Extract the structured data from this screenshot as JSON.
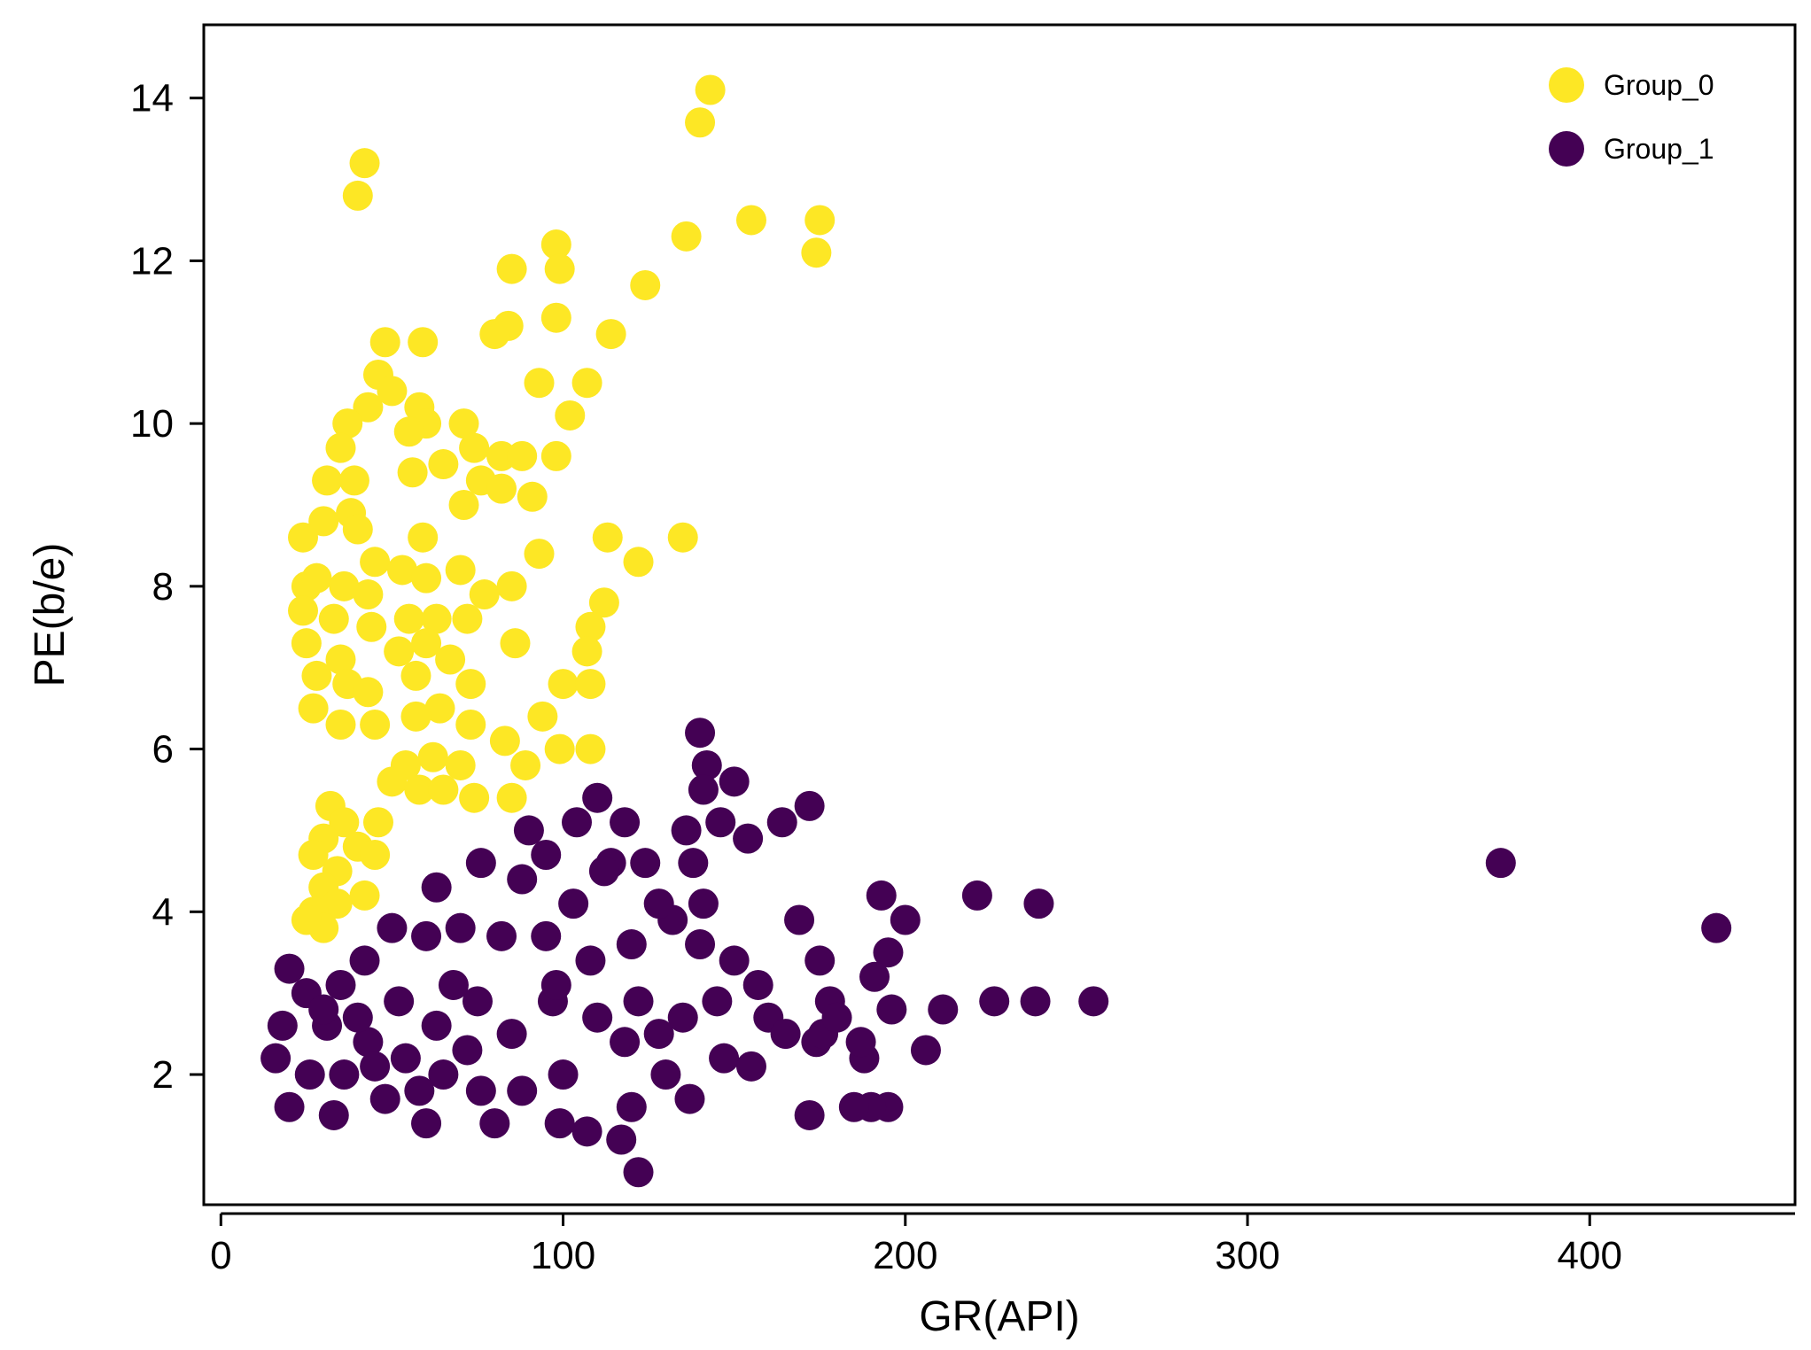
{
  "chart_data": {
    "type": "scatter",
    "title": "",
    "xlabel": "GR(API)",
    "ylabel": "PE(b/e)",
    "xlim": [
      -5,
      460
    ],
    "ylim": [
      0.4,
      14.9
    ],
    "xticks": [
      0,
      100,
      200,
      300,
      400
    ],
    "yticks": [
      2,
      4,
      6,
      8,
      10,
      12,
      14
    ],
    "grid": false,
    "legend_position": "top-right",
    "series": [
      {
        "name": "Group_0",
        "color": "#FDE725",
        "points": [
          [
            143,
            14.1
          ],
          [
            140,
            13.7
          ],
          [
            42,
            13.2
          ],
          [
            40,
            12.8
          ],
          [
            136,
            12.3
          ],
          [
            155,
            12.5
          ],
          [
            175,
            12.5
          ],
          [
            174,
            12.1
          ],
          [
            98,
            12.2
          ],
          [
            99,
            11.9
          ],
          [
            85,
            11.9
          ],
          [
            124,
            11.7
          ],
          [
            84,
            11.2
          ],
          [
            80,
            11.1
          ],
          [
            98,
            11.3
          ],
          [
            114,
            11.1
          ],
          [
            48,
            11.0
          ],
          [
            59,
            11.0
          ],
          [
            46,
            10.6
          ],
          [
            50,
            10.4
          ],
          [
            43,
            10.2
          ],
          [
            93,
            10.5
          ],
          [
            107,
            10.5
          ],
          [
            102,
            10.1
          ],
          [
            37,
            10.0
          ],
          [
            58,
            10.2
          ],
          [
            60,
            10.0
          ],
          [
            71,
            10.0
          ],
          [
            55,
            9.9
          ],
          [
            35,
            9.7
          ],
          [
            56,
            9.4
          ],
          [
            65,
            9.5
          ],
          [
            74,
            9.7
          ],
          [
            82,
            9.6
          ],
          [
            88,
            9.6
          ],
          [
            98,
            9.6
          ],
          [
            39,
            9.3
          ],
          [
            31,
            9.3
          ],
          [
            76,
            9.3
          ],
          [
            82,
            9.2
          ],
          [
            91,
            9.1
          ],
          [
            71,
            9.0
          ],
          [
            38,
            8.9
          ],
          [
            30,
            8.8
          ],
          [
            40,
            8.7
          ],
          [
            59,
            8.6
          ],
          [
            113,
            8.6
          ],
          [
            135,
            8.6
          ],
          [
            24,
            8.6
          ],
          [
            93,
            8.4
          ],
          [
            122,
            8.3
          ],
          [
            45,
            8.3
          ],
          [
            53,
            8.2
          ],
          [
            60,
            8.1
          ],
          [
            70,
            8.2
          ],
          [
            25,
            8.0
          ],
          [
            28,
            8.1
          ],
          [
            36,
            8.0
          ],
          [
            43,
            7.9
          ],
          [
            85,
            8.0
          ],
          [
            77,
            7.9
          ],
          [
            24,
            7.7
          ],
          [
            33,
            7.6
          ],
          [
            44,
            7.5
          ],
          [
            55,
            7.6
          ],
          [
            63,
            7.6
          ],
          [
            72,
            7.6
          ],
          [
            112,
            7.8
          ],
          [
            108,
            7.5
          ],
          [
            25,
            7.3
          ],
          [
            35,
            7.1
          ],
          [
            52,
            7.2
          ],
          [
            60,
            7.3
          ],
          [
            67,
            7.1
          ],
          [
            86,
            7.3
          ],
          [
            107,
            7.2
          ],
          [
            28,
            6.9
          ],
          [
            37,
            6.8
          ],
          [
            57,
            6.9
          ],
          [
            73,
            6.8
          ],
          [
            100,
            6.8
          ],
          [
            108,
            6.8
          ],
          [
            43,
            6.7
          ],
          [
            64,
            6.5
          ],
          [
            27,
            6.5
          ],
          [
            35,
            6.3
          ],
          [
            45,
            6.3
          ],
          [
            57,
            6.4
          ],
          [
            73,
            6.3
          ],
          [
            94,
            6.4
          ],
          [
            83,
            6.1
          ],
          [
            99,
            6.0
          ],
          [
            108,
            6.0
          ],
          [
            62,
            5.9
          ],
          [
            54,
            5.8
          ],
          [
            70,
            5.8
          ],
          [
            89,
            5.8
          ],
          [
            50,
            5.6
          ],
          [
            58,
            5.5
          ],
          [
            65,
            5.5
          ],
          [
            74,
            5.4
          ],
          [
            85,
            5.4
          ],
          [
            32,
            5.3
          ],
          [
            36,
            5.1
          ],
          [
            46,
            5.1
          ],
          [
            30,
            4.9
          ],
          [
            40,
            4.8
          ],
          [
            45,
            4.7
          ],
          [
            27,
            4.7
          ],
          [
            34,
            4.5
          ],
          [
            30,
            4.3
          ],
          [
            42,
            4.2
          ],
          [
            34,
            4.1
          ],
          [
            27,
            4.0
          ],
          [
            30,
            3.8
          ],
          [
            25,
            3.9
          ]
        ]
      },
      {
        "name": "Group_1",
        "color": "#440154",
        "points": [
          [
            437,
            3.8
          ],
          [
            374,
            4.6
          ],
          [
            255,
            2.9
          ],
          [
            238,
            2.9
          ],
          [
            239,
            4.1
          ],
          [
            226,
            2.9
          ],
          [
            221,
            4.2
          ],
          [
            211,
            2.8
          ],
          [
            206,
            2.3
          ],
          [
            200,
            3.9
          ],
          [
            196,
            2.8
          ],
          [
            193,
            4.2
          ],
          [
            195,
            3.5
          ],
          [
            195,
            1.6
          ],
          [
            191,
            3.2
          ],
          [
            190,
            1.6
          ],
          [
            188,
            2.2
          ],
          [
            185,
            1.6
          ],
          [
            187,
            2.4
          ],
          [
            174,
            2.4
          ],
          [
            172,
            1.5
          ],
          [
            169,
            3.9
          ],
          [
            172,
            5.3
          ],
          [
            164,
            5.1
          ],
          [
            175,
            3.4
          ],
          [
            178,
            2.9
          ],
          [
            176,
            2.5
          ],
          [
            140,
            6.2
          ],
          [
            142,
            5.8
          ],
          [
            141,
            5.5
          ],
          [
            150,
            5.6
          ],
          [
            146,
            5.1
          ],
          [
            154,
            4.9
          ],
          [
            136,
            5.0
          ],
          [
            138,
            4.6
          ],
          [
            141,
            4.1
          ],
          [
            124,
            4.6
          ],
          [
            118,
            5.1
          ],
          [
            110,
            5.4
          ],
          [
            104,
            5.1
          ],
          [
            90,
            5.0
          ],
          [
            95,
            4.7
          ],
          [
            114,
            4.6
          ],
          [
            122,
            0.8
          ],
          [
            117,
            1.2
          ],
          [
            107,
            1.3
          ],
          [
            120,
            1.6
          ],
          [
            137,
            1.7
          ],
          [
            99,
            1.4
          ],
          [
            80,
            1.4
          ],
          [
            60,
            1.4
          ],
          [
            33,
            1.5
          ],
          [
            20,
            1.6
          ],
          [
            16,
            2.2
          ],
          [
            18,
            2.6
          ],
          [
            20,
            3.3
          ],
          [
            25,
            3.0
          ],
          [
            31,
            2.6
          ],
          [
            43,
            2.4
          ],
          [
            54,
            2.2
          ],
          [
            65,
            2.0
          ],
          [
            76,
            1.8
          ],
          [
            88,
            1.8
          ],
          [
            100,
            2.0
          ],
          [
            130,
            2.0
          ],
          [
            147,
            2.2
          ],
          [
            155,
            2.1
          ],
          [
            160,
            2.7
          ],
          [
            150,
            3.4
          ],
          [
            140,
            3.6
          ],
          [
            132,
            3.9
          ],
          [
            120,
            3.6
          ],
          [
            108,
            3.4
          ],
          [
            95,
            3.7
          ],
          [
            82,
            3.7
          ],
          [
            70,
            3.8
          ],
          [
            60,
            3.7
          ],
          [
            50,
            3.8
          ],
          [
            42,
            3.4
          ],
          [
            35,
            3.1
          ],
          [
            30,
            2.8
          ],
          [
            40,
            2.7
          ],
          [
            52,
            2.9
          ],
          [
            63,
            2.6
          ],
          [
            75,
            2.9
          ],
          [
            85,
            2.5
          ],
          [
            97,
            2.9
          ],
          [
            110,
            2.7
          ],
          [
            122,
            2.9
          ],
          [
            135,
            2.7
          ],
          [
            145,
            2.9
          ],
          [
            157,
            3.1
          ],
          [
            165,
            2.5
          ],
          [
            180,
            2.7
          ],
          [
            88,
            4.4
          ],
          [
            76,
            4.6
          ],
          [
            63,
            4.3
          ],
          [
            103,
            4.1
          ],
          [
            112,
            4.5
          ],
          [
            128,
            4.1
          ],
          [
            98,
            3.1
          ],
          [
            68,
            3.1
          ],
          [
            45,
            2.1
          ],
          [
            58,
            1.8
          ],
          [
            72,
            2.3
          ],
          [
            118,
            2.4
          ],
          [
            128,
            2.5
          ],
          [
            26,
            2.0
          ],
          [
            36,
            2.0
          ],
          [
            48,
            1.7
          ]
        ]
      }
    ]
  }
}
